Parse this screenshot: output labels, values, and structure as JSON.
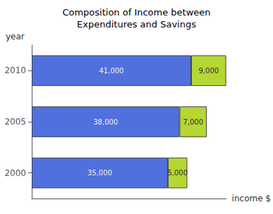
{
  "chart_data": {
    "type": "bar",
    "orientation": "horizontal",
    "stacked": true,
    "title": "Composition of Income between\nExpenditures and Savings",
    "xlabel": "income $",
    "ylabel": "year",
    "categories": [
      "2010",
      "2005",
      "2000"
    ],
    "series": [
      {
        "values": [
          41000,
          38000,
          35000
        ],
        "value_labels": [
          "41,000",
          "38,000",
          "35,000"
        ]
      },
      {
        "values": [
          9000,
          7000,
          5000
        ],
        "value_labels": [
          "9,000",
          "7,000",
          "5,000"
        ]
      }
    ],
    "xlim": [
      0,
      50000
    ],
    "data_labels": true,
    "tick_labels": "y",
    "grid": false
  }
}
